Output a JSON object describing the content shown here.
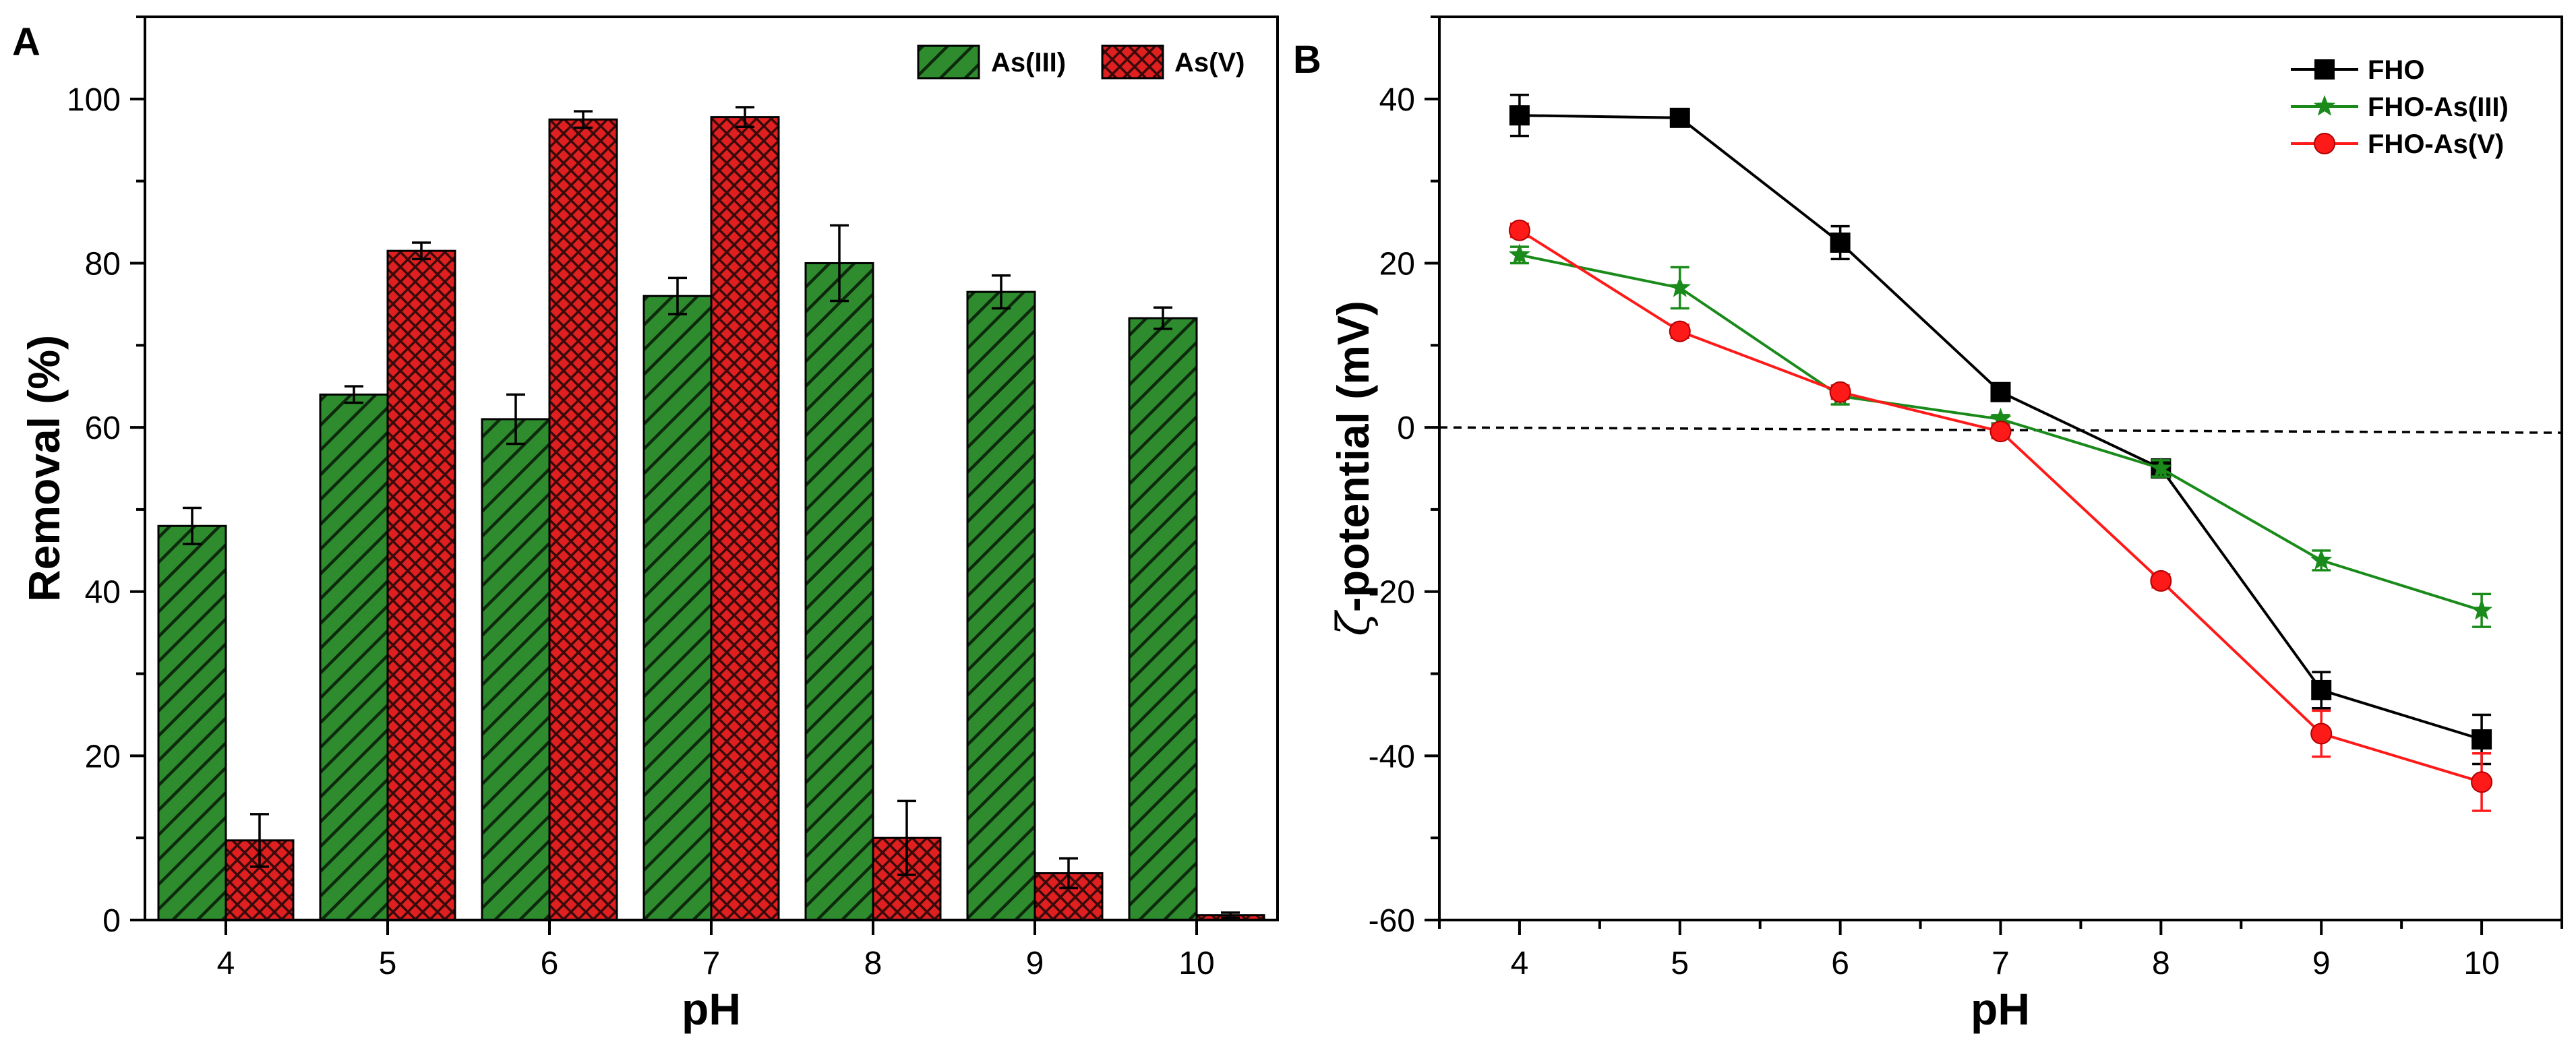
{
  "chart_data": [
    {
      "panel": "A",
      "type": "bar",
      "xlabel": "pH",
      "ylabel": "Removal (%)",
      "ylim": [
        0,
        110
      ],
      "yticks": [
        0,
        20,
        40,
        60,
        80,
        100
      ],
      "categories": [
        "4",
        "5",
        "6",
        "7",
        "8",
        "9",
        "10"
      ],
      "series": [
        {
          "name": "As(III)",
          "color": "#2e8b2e",
          "pattern": "diagonal-hatch",
          "values": [
            48.0,
            64.0,
            61.0,
            76.0,
            80.0,
            76.5,
            73.3
          ],
          "errors": [
            2.2,
            1.0,
            3.0,
            2.2,
            4.6,
            2.0,
            1.3
          ]
        },
        {
          "name": "As(V)",
          "color": "#e02020",
          "pattern": "cross-hatch",
          "values": [
            9.7,
            81.5,
            97.5,
            97.8,
            10.0,
            5.7,
            0.6
          ],
          "errors": [
            3.2,
            1.0,
            1.0,
            1.2,
            4.5,
            1.8,
            0.3
          ]
        }
      ],
      "legend_position": "top-right"
    },
    {
      "panel": "B",
      "type": "line",
      "xlabel": "pH",
      "ylabel": "ζ-potential (mV)",
      "ylabel_symbol": "ζ",
      "ylabel_rest": "-potential (mV)",
      "xlim": [
        3.5,
        10.5
      ],
      "ylim": [
        -60,
        50
      ],
      "xticks": [
        4,
        5,
        6,
        7,
        8,
        9,
        10
      ],
      "yticks": [
        -60,
        -40,
        -20,
        0,
        20,
        40
      ],
      "x": [
        4,
        5,
        6,
        7,
        8,
        9,
        10
      ],
      "series": [
        {
          "name": "FHO",
          "color": "#000000",
          "marker": "square",
          "values": [
            38.0,
            37.7,
            22.5,
            4.3,
            -5.0,
            -32.0,
            -38.0
          ],
          "errors": [
            2.5,
            1.0,
            2.0,
            0.8,
            1.0,
            2.2,
            3.0
          ]
        },
        {
          "name": "FHO-As(III)",
          "color": "#1a8a1a",
          "marker": "star",
          "values": [
            21.0,
            17.0,
            3.8,
            1.0,
            -5.0,
            -16.2,
            -22.3
          ],
          "errors": [
            1.0,
            2.5,
            1.0,
            0.5,
            1.0,
            1.2,
            2.0
          ]
        },
        {
          "name": "FHO-As(V)",
          "color": "#ff1a1a",
          "marker": "circle",
          "values": [
            24.0,
            11.7,
            4.3,
            -0.5,
            -18.7,
            -37.3,
            -43.2
          ],
          "errors": [
            0.8,
            0.8,
            0.8,
            0.8,
            0.8,
            2.8,
            3.5
          ]
        }
      ],
      "reference_line": {
        "y": 0,
        "style": "dashed"
      },
      "legend_position": "top-right"
    }
  ]
}
